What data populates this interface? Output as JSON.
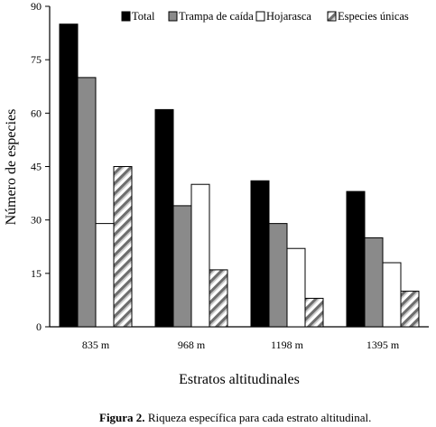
{
  "chart_data": {
    "type": "bar",
    "categories": [
      "835 m",
      "968 m",
      "1198 m",
      "1395 m"
    ],
    "series": [
      {
        "name": "Total",
        "values": [
          85,
          61,
          41,
          38
        ],
        "color": "#000000",
        "pattern": "solid"
      },
      {
        "name": "Trampa de caída",
        "values": [
          70,
          34,
          29,
          25
        ],
        "color": "#8a8a8a",
        "pattern": "solid"
      },
      {
        "name": "Hojarasca",
        "values": [
          29,
          40,
          22,
          18
        ],
        "color": "#ffffff",
        "pattern": "solid"
      },
      {
        "name": "Especies únicas",
        "values": [
          45,
          16,
          8,
          10
        ],
        "color": "#9a9a9a",
        "pattern": "diagonal-stripes"
      }
    ],
    "title": "",
    "xlabel": "Estratos altitudinales",
    "ylabel": "Número de especies",
    "ylim": [
      0,
      90
    ],
    "yticks": [
      0,
      15,
      30,
      45,
      60,
      75,
      90
    ],
    "grid": false,
    "legend": "top"
  },
  "caption": {
    "label": "Figura 2.",
    "text": " Riqueza específica para cada estrato altitudinal."
  }
}
